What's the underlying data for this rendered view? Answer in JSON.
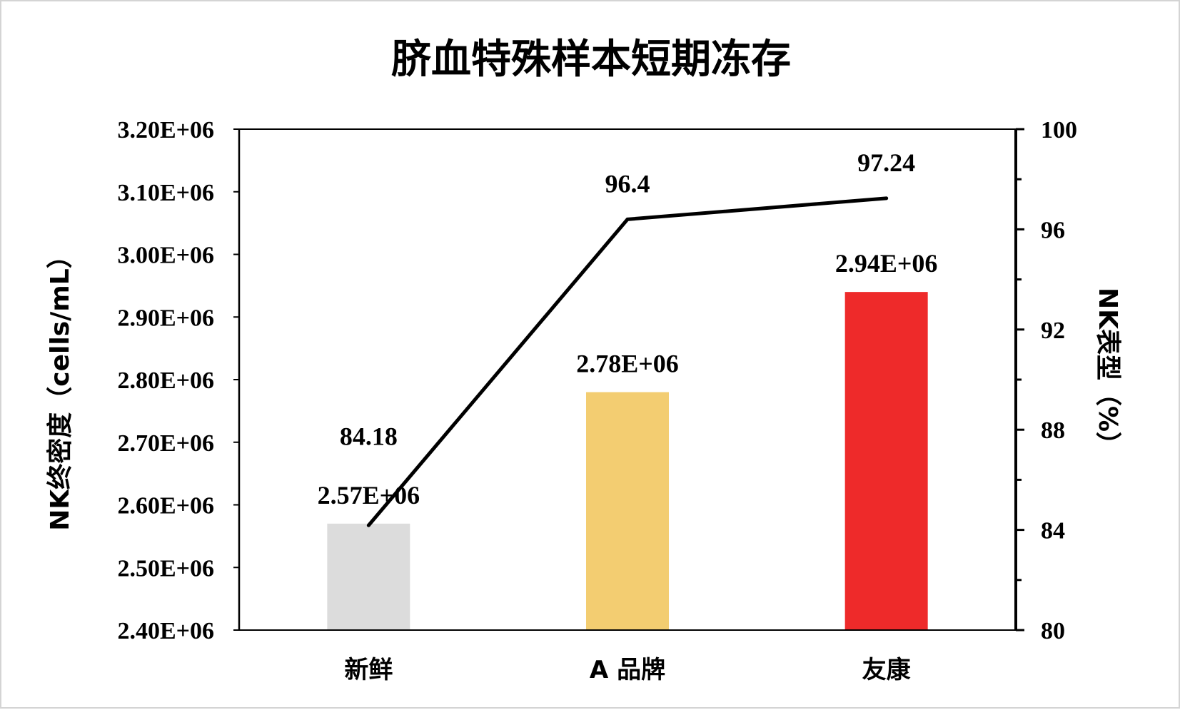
{
  "chart_data": {
    "type": "bar",
    "title": "脐血特殊样本短期冻存",
    "categories": [
      "新鲜",
      "A 品牌",
      "友康"
    ],
    "series": [
      {
        "kind": "bar",
        "axis": "left",
        "values": [
          2570000,
          2780000,
          2940000
        ],
        "labels": [
          "2.57E+06",
          "2.78E+06",
          "2.94E+06"
        ],
        "colors": [
          "#dcdcdc",
          "#f3cd71",
          "#ee2a2a"
        ]
      },
      {
        "kind": "line",
        "axis": "right",
        "values": [
          84.18,
          96.4,
          97.24
        ],
        "labels": [
          "84.18",
          "96.4",
          "97.24"
        ],
        "color": "#000000"
      }
    ],
    "ylabel": "NK终密度（cells/mL）",
    "ylim": [
      2400000,
      3200000
    ],
    "yticks": [
      "2.40E+06",
      "2.50E+06",
      "2.60E+06",
      "2.70E+06",
      "2.80E+06",
      "2.90E+06",
      "3.00E+06",
      "3.10E+06",
      "3.20E+06"
    ],
    "y2label": "NK表型（%）",
    "y2lim": [
      80,
      100
    ],
    "y2ticks": [
      "80",
      "84",
      "88",
      "92",
      "96",
      "100"
    ],
    "grid": false,
    "legend": "none"
  }
}
